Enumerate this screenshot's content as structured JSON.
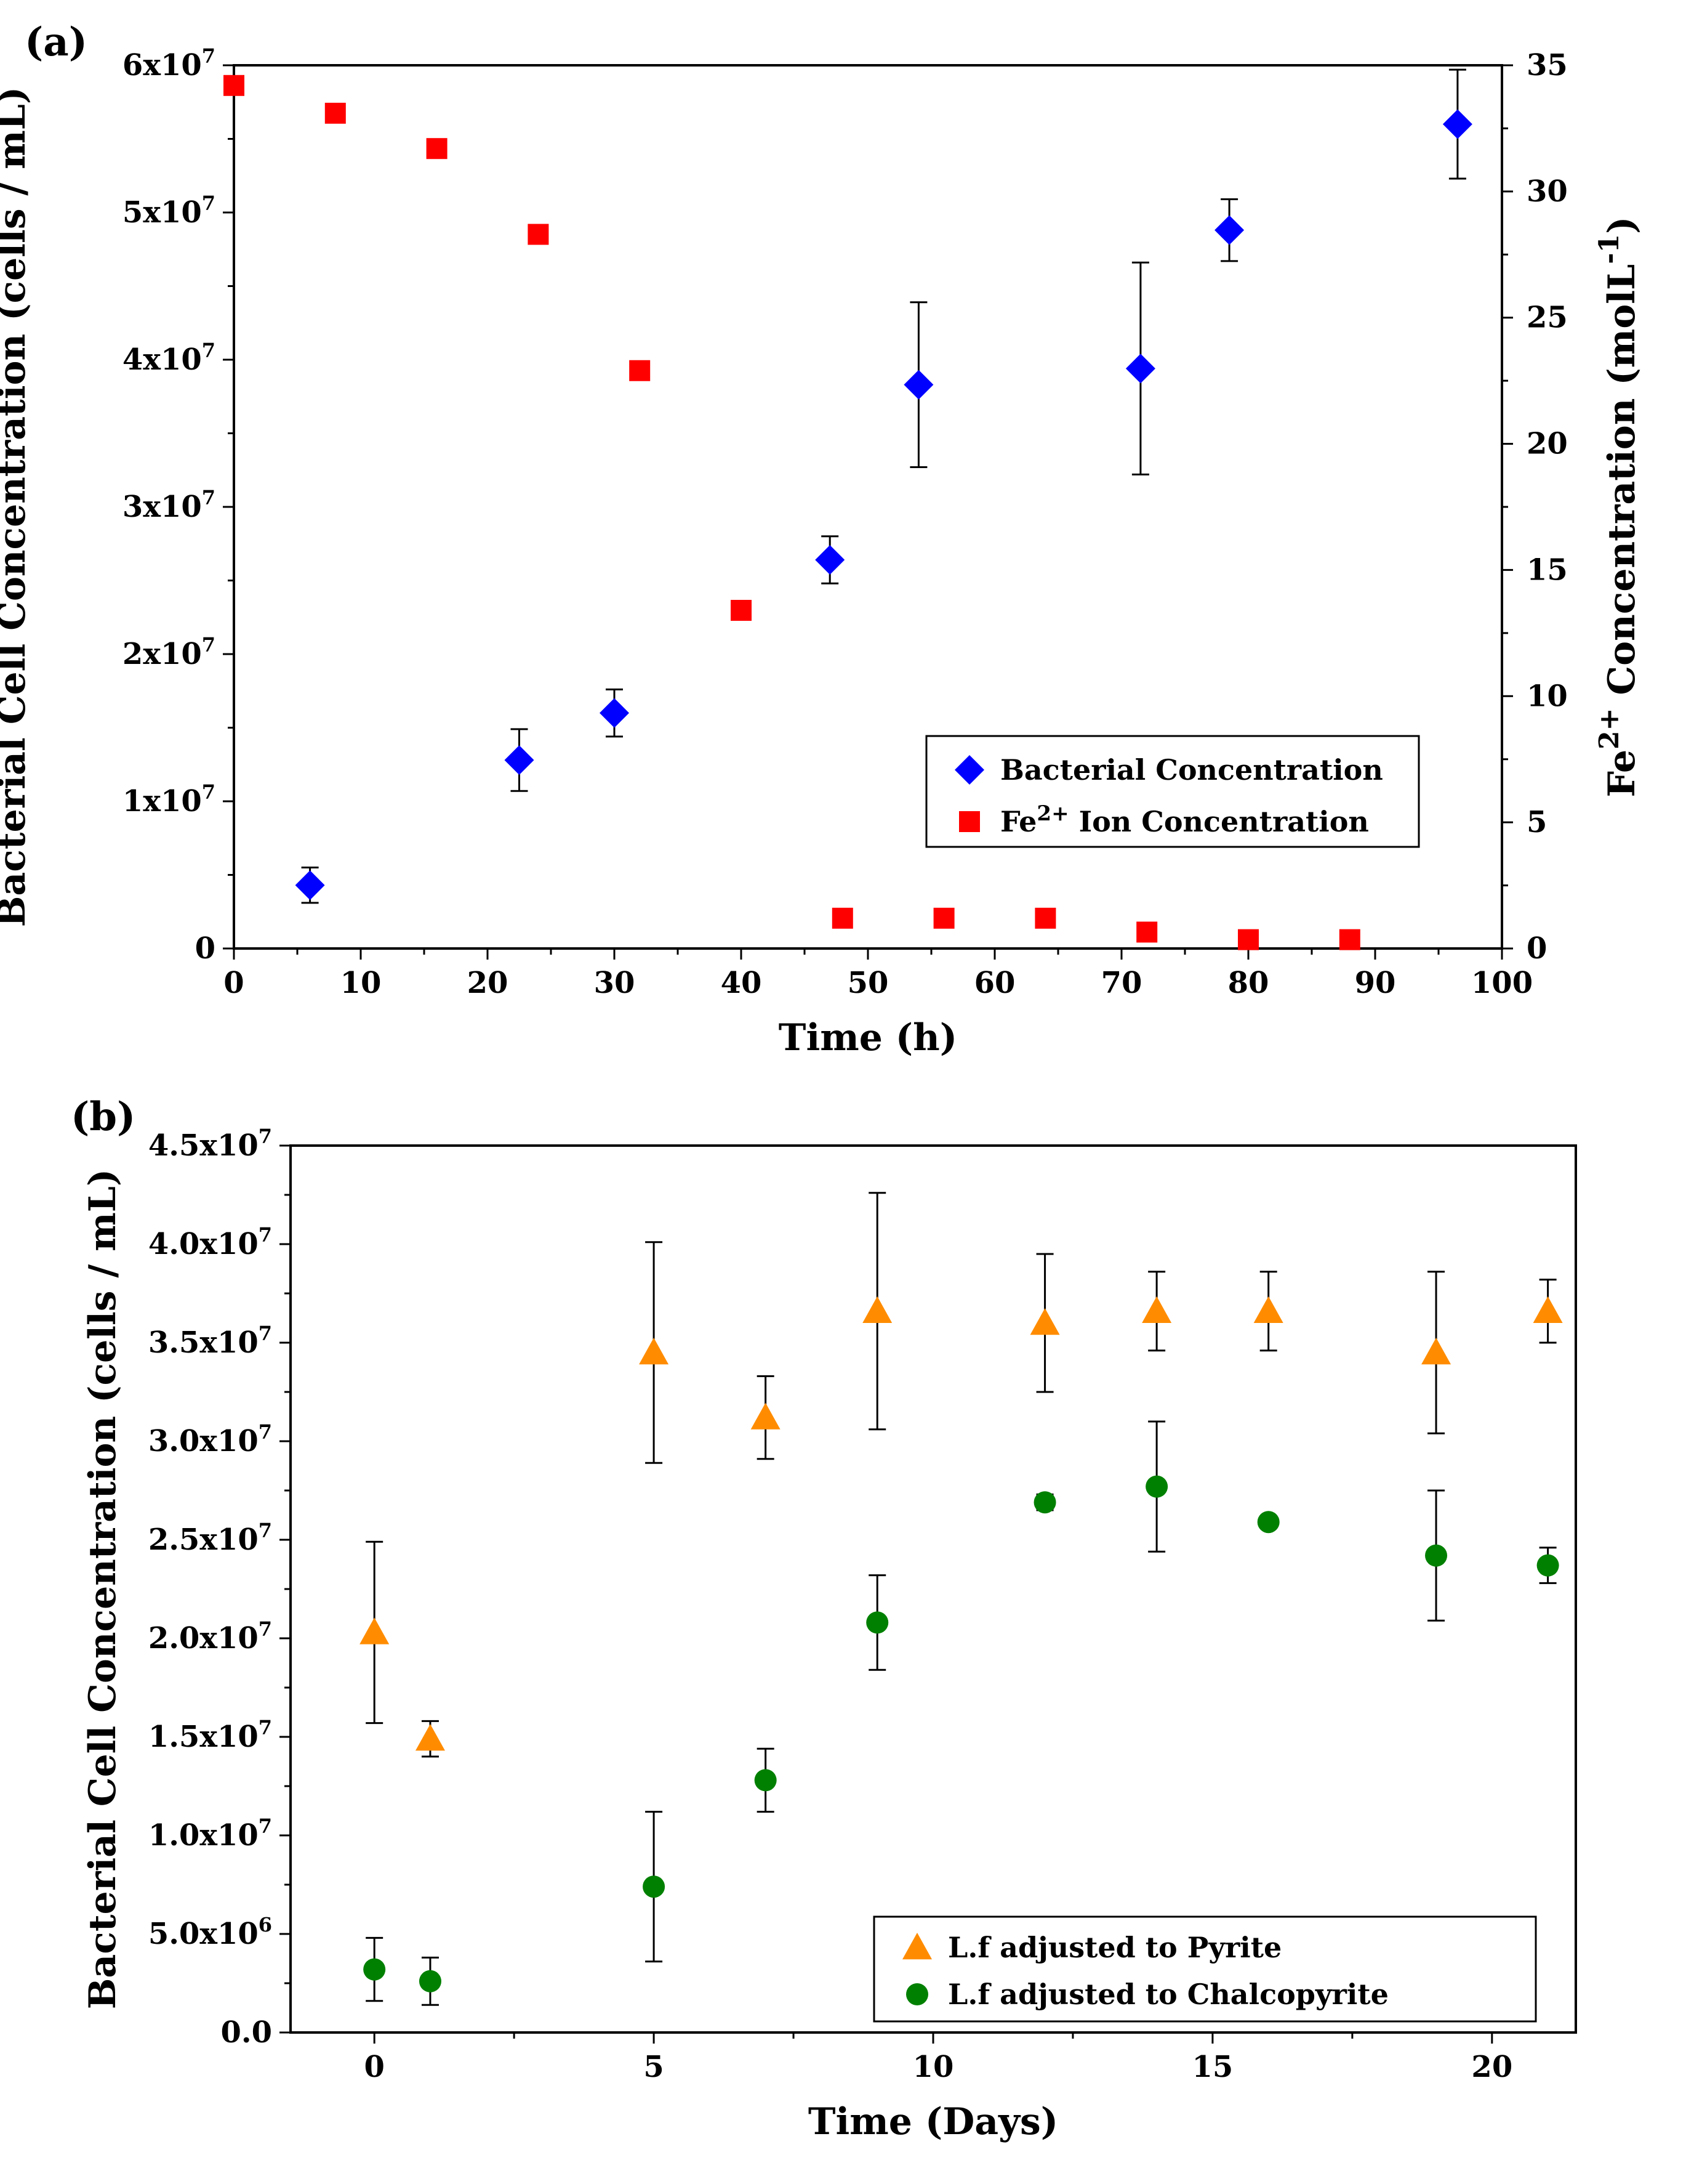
{
  "chart_data": [
    {
      "panel": "(a)",
      "type": "scatter",
      "xlabel": "Time (h)",
      "ylabel": "Bacterial Cell Concentration (cells / mL)",
      "y2label_main": "Fe",
      "y2label_sup": "2+",
      "y2label_rest": " Concentration (molL",
      "y2label_sup2": "-1",
      "y2label_end": ")",
      "xlim": [
        0,
        100
      ],
      "ylim": [
        0,
        60000000
      ],
      "y2lim": [
        0,
        35
      ],
      "x_ticks": [
        0,
        10,
        20,
        30,
        40,
        50,
        60,
        70,
        80,
        90,
        100
      ],
      "y_ticks": [
        {
          "value": 0,
          "mant": "0",
          "exp": ""
        },
        {
          "value": 10000000,
          "mant": "1x10",
          "exp": "7"
        },
        {
          "value": 20000000,
          "mant": "2x10",
          "exp": "7"
        },
        {
          "value": 30000000,
          "mant": "3x10",
          "exp": "7"
        },
        {
          "value": 40000000,
          "mant": "4x10",
          "exp": "7"
        },
        {
          "value": 50000000,
          "mant": "5x10",
          "exp": "7"
        },
        {
          "value": 60000000,
          "mant": "6x10",
          "exp": "7"
        }
      ],
      "y2_ticks": [
        0,
        5,
        10,
        15,
        20,
        25,
        30,
        35
      ],
      "series": [
        {
          "name": "Bacterial Concentration",
          "name_parts": [
            "Bacterial Concentration"
          ],
          "axis": "left",
          "marker": "diamond",
          "color": "#0000ff",
          "points": [
            {
              "x": 6,
              "y": 4300000,
              "err": 1200000
            },
            {
              "x": 22.5,
              "y": 12800000,
              "err": 2100000
            },
            {
              "x": 30,
              "y": 16000000,
              "err": 1600000
            },
            {
              "x": 47,
              "y": 26400000,
              "err": 1600000
            },
            {
              "x": 54,
              "y": 38300000,
              "err": 5600000
            },
            {
              "x": 71.5,
              "y": 39400000,
              "err": 7200000
            },
            {
              "x": 78.5,
              "y": 48800000,
              "err": 2100000
            },
            {
              "x": 96.5,
              "y": 56000000,
              "err": 3700000
            }
          ]
        },
        {
          "name": "Fe2+ Ion Concentration",
          "name_parts": [
            "Fe",
            "2+",
            " Ion Concentration"
          ],
          "axis": "right",
          "marker": "square",
          "color": "#ff0000",
          "points": [
            {
              "x": 0,
              "y": 34.2
            },
            {
              "x": 8,
              "y": 33.1
            },
            {
              "x": 16,
              "y": 31.7
            },
            {
              "x": 24,
              "y": 28.3
            },
            {
              "x": 32,
              "y": 22.9
            },
            {
              "x": 40,
              "y": 13.4
            },
            {
              "x": 48,
              "y": 1.2
            },
            {
              "x": 56,
              "y": 1.2
            },
            {
              "x": 64,
              "y": 1.2
            },
            {
              "x": 72,
              "y": 0.65
            },
            {
              "x": 80,
              "y": 0.35
            },
            {
              "x": 88,
              "y": 0.35
            }
          ]
        }
      ],
      "legend_position": "lower-right"
    },
    {
      "panel": "(b)",
      "type": "scatter",
      "xlabel": "Time (Days)",
      "ylabel": "Bacterial Cell Concentration (cells / mL)",
      "xlim": [
        -1.5,
        21.5
      ],
      "ylim": [
        0,
        45000000
      ],
      "x_ticks": [
        0,
        5,
        10,
        15,
        20
      ],
      "x_minor_ticks": [
        2.5,
        7.5,
        12.5,
        17.5
      ],
      "y_ticks": [
        {
          "value": 0,
          "mant": "0.0",
          "exp": ""
        },
        {
          "value": 5000000,
          "mant": "5.0x10",
          "exp": "6"
        },
        {
          "value": 10000000,
          "mant": "1.0x10",
          "exp": "7"
        },
        {
          "value": 15000000,
          "mant": "1.5x10",
          "exp": "7"
        },
        {
          "value": 20000000,
          "mant": "2.0x10",
          "exp": "7"
        },
        {
          "value": 25000000,
          "mant": "2.5x10",
          "exp": "7"
        },
        {
          "value": 30000000,
          "mant": "3.0x10",
          "exp": "7"
        },
        {
          "value": 35000000,
          "mant": "3.5x10",
          "exp": "7"
        },
        {
          "value": 40000000,
          "mant": "4.0x10",
          "exp": "7"
        },
        {
          "value": 45000000,
          "mant": "4.5x10",
          "exp": "7"
        }
      ],
      "series": [
        {
          "name": "L.f adjusted to Pyrite",
          "name_parts": [
            "L.f adjusted to Pyrite"
          ],
          "marker": "triangle",
          "color": "#ff8c00",
          "points": [
            {
              "x": 0,
              "y": 20300000,
              "err": 4600000
            },
            {
              "x": 1,
              "y": 14900000,
              "err": 900000
            },
            {
              "x": 5,
              "y": 34500000,
              "err": 5600000
            },
            {
              "x": 7,
              "y": 31200000,
              "err": 2100000
            },
            {
              "x": 9,
              "y": 36600000,
              "err": 6000000
            },
            {
              "x": 12,
              "y": 36000000,
              "err": 3500000
            },
            {
              "x": 14,
              "y": 36600000,
              "err": 2000000
            },
            {
              "x": 16,
              "y": 36600000,
              "err": 2000000
            },
            {
              "x": 19,
              "y": 34500000,
              "err": 4100000
            },
            {
              "x": 21,
              "y": 36600000,
              "err": 1600000
            }
          ]
        },
        {
          "name": "L.f adjusted to Chalcopyrite",
          "name_parts": [
            "L.f adjusted to Chalcopyrite"
          ],
          "marker": "circle",
          "color": "#008000",
          "points": [
            {
              "x": 0,
              "y": 3200000,
              "err": 1600000
            },
            {
              "x": 1,
              "y": 2600000,
              "err": 1200000
            },
            {
              "x": 5,
              "y": 7400000,
              "err": 3800000
            },
            {
              "x": 7,
              "y": 12800000,
              "err": 1600000
            },
            {
              "x": 9,
              "y": 20800000,
              "err": 2400000
            },
            {
              "x": 12,
              "y": 26900000,
              "err": 400000
            },
            {
              "x": 14,
              "y": 27700000,
              "err": 3300000
            },
            {
              "x": 16,
              "y": 25900000,
              "err": 300000
            },
            {
              "x": 19,
              "y": 24200000,
              "err": 3300000
            },
            {
              "x": 21,
              "y": 23700000,
              "err": 900000
            }
          ]
        }
      ],
      "legend_position": "lower-right"
    }
  ]
}
